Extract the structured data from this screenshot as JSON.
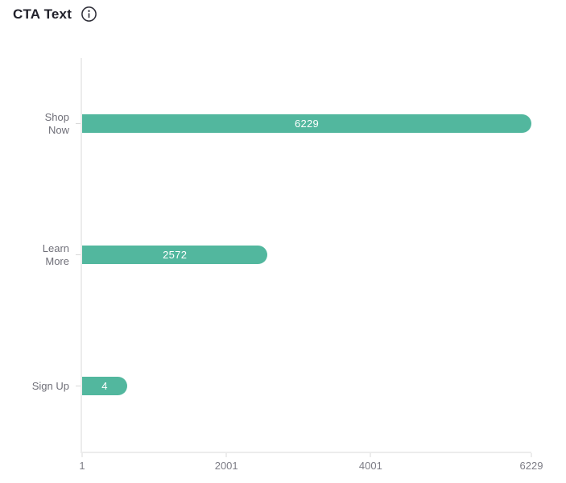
{
  "header": {
    "title": "CTA Text",
    "info_icon": "info-icon"
  },
  "chart_data": {
    "type": "bar",
    "orientation": "horizontal",
    "title": "CTA Text",
    "categories": [
      "Shop Now",
      "Learn More",
      "Sign Up"
    ],
    "category_label_lines": [
      [
        "Shop",
        "Now"
      ],
      [
        "Learn",
        "More"
      ],
      [
        "Sign Up"
      ]
    ],
    "values": [
      6229,
      2572,
      4
    ],
    "value_labels": [
      "6229",
      "2572",
      "4"
    ],
    "x_tick_labels": [
      "1",
      "2001",
      "4001",
      "6229"
    ],
    "x_tick_values": [
      1,
      2001,
      4001,
      6229
    ],
    "xlim": [
      1,
      6229
    ],
    "bar_color": "#52b79e",
    "value_label_color": "#ffffff",
    "axis_line_color": "#ececec",
    "tick_mark_color": "#d9d9d9",
    "category_label_color": "#6f6f78",
    "tick_label_color": "#7d7d86",
    "grid": false,
    "legend": false
  }
}
